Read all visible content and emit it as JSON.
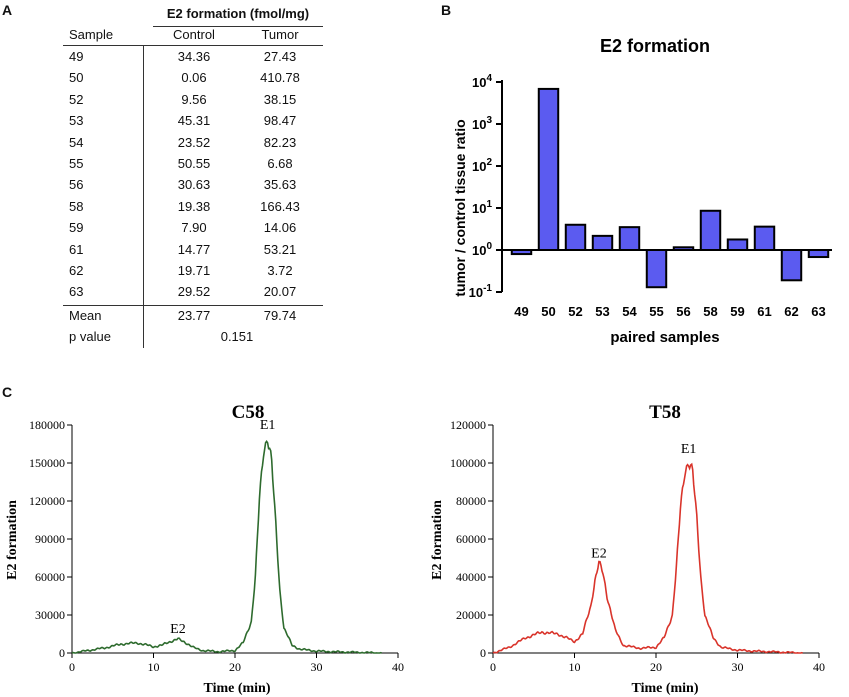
{
  "panels": {
    "a": "A",
    "b": "B",
    "c": "C"
  },
  "table": {
    "group_header": "E2 formation (fmol/mg)",
    "col_sample": "Sample",
    "col_control": "Control",
    "col_tumor": "Tumor",
    "rows": [
      {
        "sample": "49",
        "control": "34.36",
        "tumor": "27.43"
      },
      {
        "sample": "50",
        "control": "0.06",
        "tumor": "410.78"
      },
      {
        "sample": "52",
        "control": "9.56",
        "tumor": "38.15"
      },
      {
        "sample": "53",
        "control": "45.31",
        "tumor": "98.47"
      },
      {
        "sample": "54",
        "control": "23.52",
        "tumor": "82.23"
      },
      {
        "sample": "55",
        "control": "50.55",
        "tumor": "6.68"
      },
      {
        "sample": "56",
        "control": "30.63",
        "tumor": "35.63"
      },
      {
        "sample": "58",
        "control": "19.38",
        "tumor": "166.43"
      },
      {
        "sample": "59",
        "control": "7.90",
        "tumor": "14.06"
      },
      {
        "sample": "61",
        "control": "14.77",
        "tumor": "53.21"
      },
      {
        "sample": "62",
        "control": "19.71",
        "tumor": "3.72"
      },
      {
        "sample": "63",
        "control": "29.52",
        "tumor": "20.07"
      }
    ],
    "mean_label": "Mean",
    "mean_control": "23.77",
    "mean_tumor": "79.74",
    "pvalue_label": "p value",
    "pvalue": "0.151"
  },
  "chart_data": [
    {
      "type": "bar",
      "title": "E2 formation",
      "xlabel": "paired samples",
      "ylabel": "tumor / control tissue ratio",
      "yscale": "log",
      "ylim": [
        0.1,
        10000
      ],
      "yticks": [
        0.1,
        1,
        10,
        100,
        1000,
        10000
      ],
      "ytick_labels": [
        {
          "base": "10",
          "exp": "-1"
        },
        {
          "base": "10",
          "exp": "0"
        },
        {
          "base": "10",
          "exp": "1"
        },
        {
          "base": "10",
          "exp": "2"
        },
        {
          "base": "10",
          "exp": "3"
        },
        {
          "base": "10",
          "exp": "4"
        }
      ],
      "categories": [
        "49",
        "50",
        "52",
        "53",
        "54",
        "55",
        "56",
        "58",
        "59",
        "61",
        "62",
        "63"
      ],
      "values": [
        0.8,
        6846,
        3.99,
        2.17,
        3.5,
        0.13,
        1.16,
        8.59,
        1.78,
        3.6,
        0.19,
        0.68
      ],
      "bar_color": "#5b5bf0"
    },
    {
      "type": "line",
      "title": "C58",
      "xlabel": "Time (min)",
      "ylabel": "E2 formation",
      "xlim": [
        0,
        40
      ],
      "ylim": [
        0,
        180000
      ],
      "xticks": [
        0,
        10,
        20,
        30,
        40
      ],
      "yticks": [
        0,
        30000,
        60000,
        90000,
        120000,
        150000,
        180000
      ],
      "x": [
        0,
        2,
        4,
        6,
        8,
        10,
        11,
        12,
        13,
        14,
        15,
        16,
        18,
        20,
        21,
        22,
        22.5,
        23,
        23.5,
        24,
        24.5,
        25,
        25.5,
        26,
        27,
        28,
        30,
        32,
        35,
        38
      ],
      "y": [
        0,
        2000,
        4000,
        7000,
        8000,
        5000,
        6000,
        9000,
        11000,
        8000,
        4000,
        2000,
        1000,
        2000,
        8000,
        25000,
        60000,
        120000,
        160000,
        172000,
        150000,
        100000,
        50000,
        20000,
        6000,
        3000,
        1500,
        1000,
        500,
        0
      ],
      "annotations": [
        {
          "text": "E2",
          "x": 13,
          "y": 11000
        },
        {
          "text": "E1",
          "x": 24,
          "y": 172000
        }
      ],
      "line_color": "#2e6b2e"
    },
    {
      "type": "line",
      "title": "T58",
      "xlabel": "Time (min)",
      "ylabel": "E2 formation",
      "xlim": [
        0,
        40
      ],
      "ylim": [
        0,
        120000
      ],
      "xticks": [
        0,
        10,
        20,
        30,
        40
      ],
      "yticks": [
        0,
        20000,
        40000,
        60000,
        80000,
        100000,
        120000
      ],
      "x": [
        0,
        2,
        4,
        6,
        8,
        10,
        11,
        12,
        12.5,
        13,
        13.5,
        14,
        15,
        16,
        18,
        20,
        21,
        22,
        22.5,
        23,
        23.5,
        24,
        24.5,
        25,
        25.5,
        26,
        27,
        28,
        30,
        32,
        35,
        38
      ],
      "y": [
        0,
        3000,
        8000,
        11000,
        10000,
        6000,
        10000,
        25000,
        38000,
        47000,
        42000,
        30000,
        12000,
        4000,
        2500,
        3000,
        8000,
        20000,
        45000,
        75000,
        95000,
        102000,
        95000,
        70000,
        40000,
        20000,
        8000,
        3000,
        1500,
        1000,
        500,
        0
      ],
      "annotations": [
        {
          "text": "E2",
          "x": 13,
          "y": 47000
        },
        {
          "text": "E1",
          "x": 24,
          "y": 102000
        }
      ],
      "line_color": "#d9342b"
    }
  ]
}
